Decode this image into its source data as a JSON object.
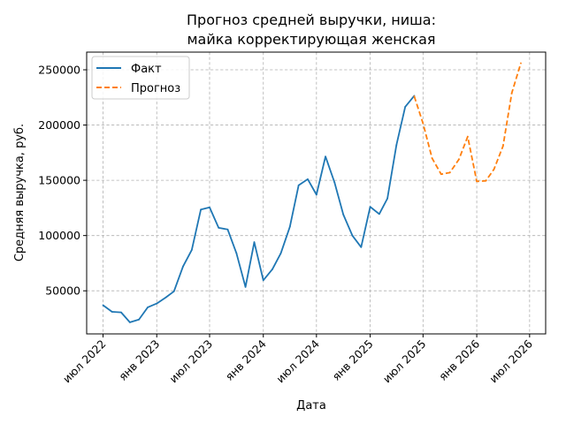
{
  "chart_data": {
    "type": "line",
    "title": [
      "Прогноз средней выручки, ниша:",
      "майка корректирующая женская"
    ],
    "xlabel": "Дата",
    "ylabel": "Средняя выручка, руб.",
    "x_ticks": [
      {
        "date": "2022-07-01",
        "label": "июл 2022"
      },
      {
        "date": "2023-01-01",
        "label": "янв 2023"
      },
      {
        "date": "2023-07-01",
        "label": "июл 2023"
      },
      {
        "date": "2024-01-01",
        "label": "янв 2024"
      },
      {
        "date": "2024-07-01",
        "label": "июл 2024"
      },
      {
        "date": "2025-01-01",
        "label": "янв 2025"
      },
      {
        "date": "2025-07-01",
        "label": "июл 2025"
      },
      {
        "date": "2026-01-01",
        "label": "янв 2026"
      },
      {
        "date": "2026-07-01",
        "label": "июл 2026"
      }
    ],
    "y_ticks": [
      {
        "value": 50000,
        "label": "50000"
      },
      {
        "value": 100000,
        "label": "100000"
      },
      {
        "value": 150000,
        "label": "150000"
      },
      {
        "value": 200000,
        "label": "200000"
      },
      {
        "value": 250000,
        "label": "250000"
      }
    ],
    "xlim": [
      "2022-05-06",
      "2026-08-25"
    ],
    "ylim": [
      11000,
      266000
    ],
    "grid": true,
    "legend_position": "top-left",
    "series": [
      {
        "name": "Факт",
        "color": "#1f77b4",
        "style": "solid",
        "points": [
          {
            "x": "2022-07-01",
            "y": 37000
          },
          {
            "x": "2022-08-01",
            "y": 31000
          },
          {
            "x": "2022-09-01",
            "y": 30500
          },
          {
            "x": "2022-10-01",
            "y": 21500
          },
          {
            "x": "2022-11-01",
            "y": 24000
          },
          {
            "x": "2022-12-01",
            "y": 35000
          },
          {
            "x": "2023-01-01",
            "y": 38500
          },
          {
            "x": "2023-02-01",
            "y": 44000
          },
          {
            "x": "2023-03-01",
            "y": 49500
          },
          {
            "x": "2023-04-01",
            "y": 72000
          },
          {
            "x": "2023-05-01",
            "y": 87000
          },
          {
            "x": "2023-06-01",
            "y": 123500
          },
          {
            "x": "2023-07-01",
            "y": 125500
          },
          {
            "x": "2023-08-01",
            "y": 107000
          },
          {
            "x": "2023-09-01",
            "y": 105500
          },
          {
            "x": "2023-10-01",
            "y": 84000
          },
          {
            "x": "2023-11-01",
            "y": 53500
          },
          {
            "x": "2023-12-01",
            "y": 94000
          },
          {
            "x": "2024-01-01",
            "y": 59500
          },
          {
            "x": "2024-02-01",
            "y": 69500
          },
          {
            "x": "2024-03-01",
            "y": 84000
          },
          {
            "x": "2024-04-01",
            "y": 108000
          },
          {
            "x": "2024-05-01",
            "y": 145500
          },
          {
            "x": "2024-06-01",
            "y": 151000
          },
          {
            "x": "2024-07-01",
            "y": 137000
          },
          {
            "x": "2024-08-01",
            "y": 171500
          },
          {
            "x": "2024-09-01",
            "y": 148000
          },
          {
            "x": "2024-10-01",
            "y": 119000
          },
          {
            "x": "2024-11-01",
            "y": 100000
          },
          {
            "x": "2024-12-01",
            "y": 89500
          },
          {
            "x": "2025-01-01",
            "y": 126000
          },
          {
            "x": "2025-02-01",
            "y": 119500
          },
          {
            "x": "2025-03-01",
            "y": 133500
          },
          {
            "x": "2025-04-01",
            "y": 182000
          },
          {
            "x": "2025-05-01",
            "y": 216500
          },
          {
            "x": "2025-06-01",
            "y": 226500
          }
        ]
      },
      {
        "name": "Прогноз",
        "color": "#ff7f0e",
        "style": "dashed",
        "points": [
          {
            "x": "2025-06-01",
            "y": 226000
          },
          {
            "x": "2025-07-01",
            "y": 201500
          },
          {
            "x": "2025-08-01",
            "y": 170000
          },
          {
            "x": "2025-09-01",
            "y": 155500
          },
          {
            "x": "2025-10-01",
            "y": 157000
          },
          {
            "x": "2025-11-01",
            "y": 169000
          },
          {
            "x": "2025-12-01",
            "y": 189500
          },
          {
            "x": "2026-01-01",
            "y": 149000
          },
          {
            "x": "2026-02-01",
            "y": 149500
          },
          {
            "x": "2026-03-01",
            "y": 160000
          },
          {
            "x": "2026-04-01",
            "y": 181000
          },
          {
            "x": "2026-05-01",
            "y": 229000
          },
          {
            "x": "2026-06-01",
            "y": 256000
          }
        ]
      }
    ]
  }
}
